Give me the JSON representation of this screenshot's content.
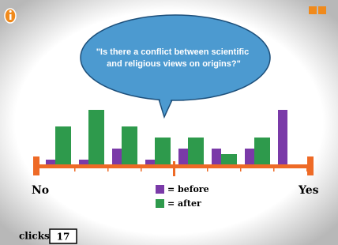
{
  "chart_data": {
    "type": "bar",
    "title": "\"Is there a conflict between scientific and religious views on origins?\"",
    "categories": [
      null,
      null,
      null,
      null,
      null,
      null,
      null,
      null
    ],
    "x_start_label": "No",
    "x_end_label": "Yes",
    "series": [
      {
        "name": "= before",
        "color": "#7a3aa8",
        "values": [
          1,
          1,
          3,
          1,
          3,
          3,
          3,
          10
        ]
      },
      {
        "name": "= after",
        "color": "#2e9a4c",
        "values": [
          7,
          10,
          7,
          5,
          5,
          2,
          5,
          null
        ]
      }
    ]
  },
  "counter": {
    "label": "clicks:",
    "value": 17
  }
}
